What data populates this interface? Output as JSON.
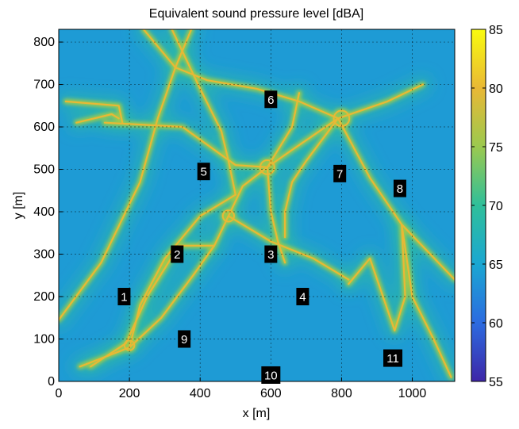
{
  "chart_data": {
    "type": "heatmap",
    "title": "Equivalent sound pressure level [dBA]",
    "xlabel": "x [m]",
    "ylabel": "y [m]",
    "xlim": [
      0,
      1120
    ],
    "ylim": [
      0,
      830
    ],
    "xticks": [
      0,
      200,
      400,
      600,
      800,
      1000
    ],
    "yticks": [
      0,
      100,
      200,
      300,
      400,
      500,
      600,
      700,
      800
    ],
    "grid": true,
    "colorbar": {
      "label": "",
      "range": [
        55,
        85
      ],
      "ticks": [
        55,
        60,
        65,
        70,
        75,
        80,
        85
      ],
      "colormap": "parula-like",
      "colors": [
        "#3e26a8",
        "#2c6be0",
        "#1aa7d2",
        "#2fbf9a",
        "#9bc94f",
        "#e9b835",
        "#f9fb0e"
      ]
    },
    "background_level_dBA": 64,
    "road_level_dBA": 80,
    "roads": [
      {
        "points": [
          [
            0,
            145
          ],
          [
            120,
            280
          ],
          [
            230,
            470
          ],
          [
            280,
            620
          ],
          [
            330,
            740
          ],
          [
            375,
            830
          ]
        ]
      },
      {
        "points": [
          [
            320,
            830
          ],
          [
            400,
            690
          ],
          [
            460,
            590
          ],
          [
            480,
            520
          ],
          [
            500,
            440
          ]
        ]
      },
      {
        "points": [
          [
            240,
            830
          ],
          [
            330,
            740
          ],
          [
            420,
            710
          ],
          [
            560,
            690
          ],
          [
            680,
            660
          ],
          [
            790,
            620
          ]
        ]
      },
      {
        "points": [
          [
            790,
            620
          ],
          [
            930,
            660
          ],
          [
            1030,
            700
          ]
        ]
      },
      {
        "points": [
          [
            130,
            610
          ],
          [
            350,
            600
          ],
          [
            500,
            510
          ],
          [
            590,
            505
          ],
          [
            650,
            540
          ],
          [
            790,
            620
          ]
        ]
      },
      {
        "points": [
          [
            590,
            505
          ],
          [
            660,
            600
          ],
          [
            680,
            680
          ]
        ]
      },
      {
        "points": [
          [
            590,
            505
          ],
          [
            520,
            460
          ],
          [
            480,
            390
          ],
          [
            440,
            320
          ],
          [
            380,
            250
          ],
          [
            290,
            150
          ],
          [
            200,
            80
          ]
        ]
      },
      {
        "points": [
          [
            480,
            390
          ],
          [
            600,
            330
          ],
          [
            720,
            290
          ],
          [
            820,
            240
          ]
        ]
      },
      {
        "points": [
          [
            590,
            505
          ],
          [
            600,
            400
          ],
          [
            620,
            330
          ],
          [
            640,
            280
          ]
        ]
      },
      {
        "points": [
          [
            790,
            620
          ],
          [
            700,
            520
          ],
          [
            660,
            470
          ],
          [
            640,
            400
          ],
          [
            640,
            340
          ]
        ]
      },
      {
        "points": [
          [
            790,
            620
          ],
          [
            880,
            480
          ],
          [
            970,
            370
          ],
          [
            1120,
            240
          ]
        ]
      },
      {
        "points": [
          [
            970,
            370
          ],
          [
            980,
            200
          ],
          [
            950,
            120
          ],
          [
            880,
            290
          ],
          [
            820,
            230
          ]
        ]
      },
      {
        "points": [
          [
            970,
            370
          ],
          [
            1000,
            200
          ],
          [
            1060,
            100
          ],
          [
            1110,
            10
          ]
        ]
      },
      {
        "points": [
          [
            50,
            610
          ],
          [
            150,
            630
          ],
          [
            170,
            620
          ]
        ]
      },
      {
        "points": [
          [
            20,
            660
          ],
          [
            170,
            650
          ],
          [
            180,
            610
          ]
        ]
      },
      {
        "points": [
          [
            60,
            35
          ],
          [
            200,
            80
          ],
          [
            230,
            180
          ],
          [
            300,
            290
          ],
          [
            400,
            390
          ],
          [
            500,
            440
          ]
        ]
      },
      {
        "points": [
          [
            90,
            35
          ],
          [
            190,
            90
          ],
          [
            250,
            200
          ],
          [
            340,
            320
          ],
          [
            440,
            320
          ]
        ]
      }
    ],
    "junctions": [
      {
        "center": [
          800,
          620
        ],
        "radius": 22
      },
      {
        "center": [
          590,
          505
        ],
        "radius": 20
      },
      {
        "center": [
          480,
          390
        ],
        "radius": 16
      },
      {
        "center": [
          200,
          85
        ],
        "radius": 14
      }
    ],
    "annotations": [
      {
        "label": "1",
        "x": 185,
        "y": 200
      },
      {
        "label": "2",
        "x": 335,
        "y": 300
      },
      {
        "label": "3",
        "x": 600,
        "y": 300
      },
      {
        "label": "4",
        "x": 690,
        "y": 200
      },
      {
        "label": "5",
        "x": 410,
        "y": 495
      },
      {
        "label": "6",
        "x": 600,
        "y": 665
      },
      {
        "label": "7",
        "x": 795,
        "y": 490
      },
      {
        "label": "8",
        "x": 965,
        "y": 455
      },
      {
        "label": "9",
        "x": 355,
        "y": 100
      },
      {
        "label": "10",
        "x": 600,
        "y": 15
      },
      {
        "label": "11",
        "x": 945,
        "y": 55
      }
    ]
  }
}
